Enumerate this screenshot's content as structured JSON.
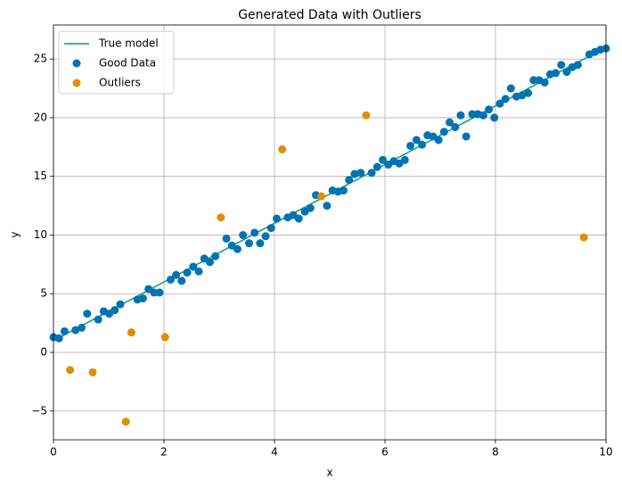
{
  "chart_data": {
    "type": "scatter",
    "title": "Generated Data with Outliers",
    "x_label": "x",
    "y_label": "y",
    "xlim": [
      0,
      10
    ],
    "ylim": [
      -7.45,
      27.9
    ],
    "xticks": [
      0,
      2,
      4,
      6,
      8,
      10
    ],
    "yticks": [
      {
        "value": -5,
        "label": "−5"
      },
      0,
      5,
      10,
      15,
      20,
      25
    ],
    "grid": true,
    "legend": "upper-left",
    "series": [
      {
        "name": "True model",
        "type": "line",
        "color": "#029e73",
        "x": [
          0,
          10
        ],
        "values": [
          1,
          26
        ]
      },
      {
        "name": "Good Data",
        "type": "scatter",
        "color": "#0173b2",
        "x": [
          0,
          0.1,
          0.2,
          0.4,
          0.51,
          0.61,
          0.81,
          0.91,
          1.01,
          1.11,
          1.21,
          1.52,
          1.62,
          1.72,
          1.82,
          1.92,
          2.12,
          2.22,
          2.32,
          2.42,
          2.53,
          2.63,
          2.73,
          2.83,
          2.93,
          3.13,
          3.23,
          3.33,
          3.43,
          3.54,
          3.64,
          3.74,
          3.84,
          3.94,
          4.04,
          4.24,
          4.34,
          4.44,
          4.55,
          4.65,
          4.75,
          4.95,
          5.05,
          5.15,
          5.25,
          5.35,
          5.45,
          5.56,
          5.76,
          5.86,
          5.96,
          6.06,
          6.16,
          6.26,
          6.36,
          6.46,
          6.57,
          6.67,
          6.77,
          6.87,
          6.97,
          7.07,
          7.17,
          7.27,
          7.37,
          7.47,
          7.58,
          7.68,
          7.78,
          7.88,
          7.98,
          8.08,
          8.18,
          8.28,
          8.38,
          8.48,
          8.59,
          8.69,
          8.79,
          8.89,
          8.99,
          9.09,
          9.19,
          9.29,
          9.39,
          9.49,
          9.7,
          9.8,
          9.9,
          10.0
        ],
        "values": [
          1.3,
          1.2,
          1.8,
          1.9,
          2.1,
          3.3,
          2.8,
          3.5,
          3.3,
          3.6,
          4.1,
          4.5,
          4.6,
          5.4,
          5.1,
          5.1,
          6.2,
          6.6,
          6.1,
          6.8,
          7.3,
          6.9,
          8.0,
          7.7,
          8.2,
          9.7,
          9.1,
          8.8,
          10.0,
          9.3,
          10.2,
          9.3,
          9.9,
          10.6,
          11.4,
          11.5,
          11.7,
          11.4,
          12.0,
          12.3,
          13.4,
          12.5,
          13.8,
          13.7,
          13.8,
          14.7,
          15.2,
          15.3,
          15.3,
          15.8,
          16.4,
          16.0,
          16.3,
          16.1,
          16.4,
          17.6,
          18.1,
          17.7,
          18.5,
          18.4,
          18.1,
          18.8,
          19.6,
          19.2,
          20.2,
          18.4,
          20.3,
          20.3,
          20.2,
          20.7,
          20.0,
          21.2,
          21.6,
          22.5,
          21.8,
          21.9,
          22.1,
          23.2,
          23.2,
          23.0,
          23.7,
          23.8,
          24.5,
          23.9,
          24.3,
          24.5,
          25.4,
          25.6,
          25.8,
          25.9
        ]
      },
      {
        "name": "Outliers",
        "type": "scatter",
        "color": "#de8f05",
        "x": [
          0.3,
          0.71,
          1.31,
          1.41,
          2.02,
          3.03,
          4.14,
          4.85,
          5.66,
          9.6
        ],
        "values": [
          -1.5,
          -1.7,
          -5.9,
          1.7,
          1.3,
          11.5,
          17.3,
          13.3,
          20.2,
          9.8
        ]
      }
    ]
  }
}
